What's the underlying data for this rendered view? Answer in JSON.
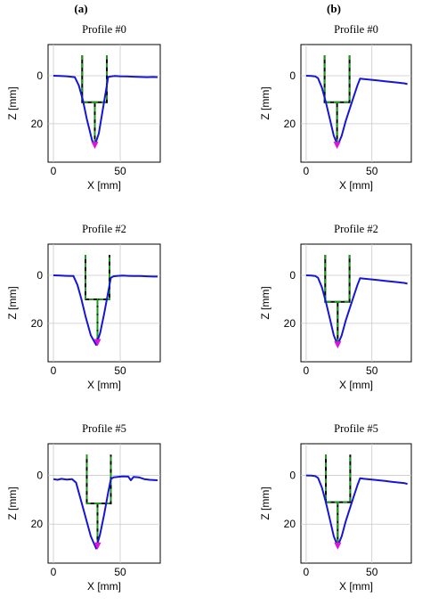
{
  "figure": {
    "panel_labels": [
      "(a)",
      "(b)"
    ]
  },
  "chart_data": [
    {
      "type": "line",
      "panel": "a",
      "title": "Profile #0",
      "xlabel": "X [mm]",
      "ylabel": "Z [mm]",
      "xlim": [
        -4,
        80
      ],
      "ylim": [
        36,
        -13
      ],
      "y_inverted": true,
      "grid": true,
      "xticks": [
        0,
        50
      ],
      "yticks": [
        0,
        20
      ],
      "series": [
        {
          "x": [
            0,
            5,
            10,
            16,
            19,
            22,
            25,
            29,
            31,
            34,
            37,
            40,
            41,
            43,
            46,
            50,
            55,
            60,
            65,
            70,
            75,
            78
          ],
          "y": [
            0,
            0.1,
            0.2,
            0.6,
            4,
            10,
            18,
            27,
            29,
            24,
            14,
            4,
            0.5,
            0.3,
            0.1,
            0.2,
            0.3,
            0.4,
            0.5,
            0.6,
            0.5,
            0.6
          ]
        }
      ],
      "tool": {
        "left_x": 21.5,
        "right_x": 40,
        "top_z": -8.5,
        "shoulder_z": 11,
        "tip_x": 31,
        "tip_z": 29
      }
    },
    {
      "type": "line",
      "panel": "b",
      "title": "Profile #0",
      "xlabel": "X [mm]",
      "ylabel": "Z [mm]",
      "xlim": [
        -4,
        80
      ],
      "ylim": [
        36,
        -13
      ],
      "y_inverted": true,
      "grid": true,
      "xticks": [
        0,
        50
      ],
      "yticks": [
        0,
        20
      ],
      "series": [
        {
          "x": [
            0,
            4,
            7,
            9,
            12,
            15,
            18,
            21,
            24,
            27,
            30,
            33,
            36,
            39,
            41,
            44,
            50,
            55,
            60,
            65,
            70,
            75,
            77
          ],
          "y": [
            0,
            0.1,
            0.3,
            1.0,
            5,
            11,
            18,
            25,
            29,
            25,
            19,
            14,
            9,
            4,
            1.2,
            1.4,
            1.7,
            2.0,
            2.3,
            2.6,
            2.9,
            3.2,
            3.5
          ]
        }
      ],
      "tool": {
        "left_x": 14,
        "right_x": 33,
        "top_z": -8.5,
        "shoulder_z": 11,
        "tip_x": 23.5,
        "tip_z": 29
      }
    },
    {
      "type": "line",
      "panel": "a",
      "title": "Profile #2",
      "xlabel": "X [mm]",
      "ylabel": "Z [mm]",
      "xlim": [
        -4,
        80
      ],
      "ylim": [
        36,
        -13
      ],
      "y_inverted": true,
      "grid": true,
      "xticks": [
        0,
        50
      ],
      "yticks": [
        0,
        20
      ],
      "series": [
        {
          "x": [
            0,
            5,
            10,
            15,
            18,
            21,
            24,
            28,
            32,
            35,
            38,
            41,
            43,
            45,
            48,
            52,
            56,
            60,
            65,
            70,
            75,
            78
          ],
          "y": [
            0,
            0.1,
            0.2,
            0.3,
            4,
            10,
            17,
            25,
            29,
            24,
            16,
            7,
            1,
            0.4,
            0.2,
            0.1,
            0.2,
            0.3,
            0.3,
            0.4,
            0.5,
            0.5
          ]
        }
      ],
      "tool": {
        "left_x": 24,
        "right_x": 42,
        "top_z": -8.5,
        "shoulder_z": 10,
        "tip_x": 33,
        "tip_z": 28
      }
    },
    {
      "type": "line",
      "panel": "b",
      "title": "Profile #2",
      "xlabel": "X [mm]",
      "ylabel": "Z [mm]",
      "xlim": [
        -4,
        80
      ],
      "ylim": [
        36,
        -13
      ],
      "y_inverted": true,
      "grid": true,
      "xticks": [
        0,
        50
      ],
      "yticks": [
        0,
        20
      ],
      "series": [
        {
          "x": [
            0,
            4,
            7,
            9,
            12,
            15,
            18,
            21,
            24,
            27,
            30,
            33,
            36,
            39,
            41,
            44,
            50,
            55,
            60,
            65,
            70,
            75,
            77
          ],
          "y": [
            0,
            0.1,
            0.3,
            1.0,
            5,
            11,
            18,
            25,
            29,
            25,
            19,
            14,
            9,
            4,
            1.2,
            1.4,
            1.7,
            2.0,
            2.3,
            2.6,
            2.9,
            3.2,
            3.5
          ]
        }
      ],
      "tool": {
        "left_x": 14.5,
        "right_x": 33,
        "top_z": -8.5,
        "shoulder_z": 11,
        "tip_x": 24,
        "tip_z": 29
      }
    },
    {
      "type": "line",
      "panel": "a",
      "title": "Profile #5",
      "xlabel": "X [mm]",
      "ylabel": "Z [mm]",
      "xlim": [
        -4,
        80
      ],
      "ylim": [
        36,
        -13
      ],
      "y_inverted": true,
      "grid": true,
      "xticks": [
        0,
        50
      ],
      "yticks": [
        0,
        20
      ],
      "series": [
        {
          "x": [
            0,
            3,
            6,
            10,
            14,
            17,
            20,
            24,
            28,
            32,
            35,
            38,
            41,
            43,
            45,
            48,
            52,
            56,
            58,
            60,
            64,
            68,
            72,
            78
          ],
          "y": [
            1.5,
            1.8,
            1.4,
            1.7,
            1.5,
            3,
            9,
            17,
            25,
            30,
            24,
            16,
            7,
            1.5,
            0.8,
            0.6,
            0.4,
            0.5,
            2.0,
            0.6,
            0.8,
            1.5,
            1.8,
            2.0
          ]
        }
      ],
      "tool": {
        "left_x": 25,
        "right_x": 43,
        "top_z": -8.5,
        "shoulder_z": 11.5,
        "tip_x": 33,
        "tip_z": 29
      }
    },
    {
      "type": "line",
      "panel": "b",
      "title": "Profile #5",
      "xlabel": "X [mm]",
      "ylabel": "Z [mm]",
      "xlim": [
        -4,
        80
      ],
      "ylim": [
        36,
        -13
      ],
      "y_inverted": true,
      "grid": true,
      "xticks": [
        0,
        50
      ],
      "yticks": [
        0,
        20
      ],
      "series": [
        {
          "x": [
            0,
            4,
            7,
            9,
            12,
            15,
            18,
            21,
            24,
            27,
            30,
            33,
            36,
            39,
            41,
            44,
            50,
            55,
            60,
            65,
            70,
            75,
            77
          ],
          "y": [
            0,
            0.1,
            0.3,
            1.0,
            5,
            11,
            18,
            25,
            29,
            25,
            19,
            14,
            9,
            4,
            1.2,
            1.4,
            1.7,
            2.0,
            2.3,
            2.6,
            2.9,
            3.2,
            3.5
          ]
        }
      ],
      "tool": {
        "left_x": 15,
        "right_x": 33.5,
        "top_z": -8.5,
        "shoulder_z": 11,
        "tip_x": 24,
        "tip_z": 29
      }
    }
  ]
}
